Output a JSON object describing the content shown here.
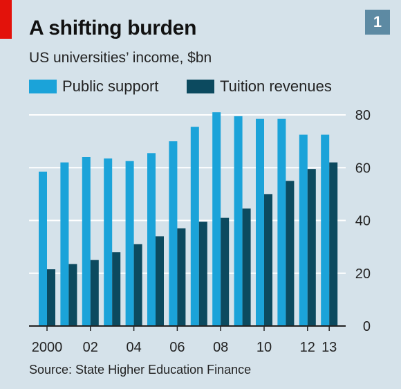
{
  "header": {
    "title": "A shifting burden",
    "subtitle": "US universities’ income, $bn",
    "badge": "1",
    "accent_color": "#e3120b",
    "badge_color": "#5d8aa3"
  },
  "source": "Source: State Higher Education Finance",
  "chart_data": {
    "type": "bar",
    "title": "A shifting burden",
    "subtitle": "US universities’ income, $bn",
    "categories": [
      "2000",
      "2001",
      "2002",
      "2003",
      "2004",
      "2005",
      "2006",
      "2007",
      "2008",
      "2009",
      "2010",
      "2011",
      "2012",
      "2013"
    ],
    "x_tick_labels": [
      {
        "index": 0,
        "label": "2000"
      },
      {
        "index": 2,
        "label": "02"
      },
      {
        "index": 4,
        "label": "04"
      },
      {
        "index": 6,
        "label": "06"
      },
      {
        "index": 8,
        "label": "08"
      },
      {
        "index": 10,
        "label": "10"
      },
      {
        "index": 12,
        "label": "12"
      },
      {
        "index": 13,
        "label": "13"
      }
    ],
    "series": [
      {
        "name": "Public support",
        "color": "#1ba3d9",
        "values": [
          58.5,
          62,
          64,
          63.5,
          62.5,
          65.5,
          70,
          75.5,
          81,
          79.5,
          78.5,
          78.5,
          72.5,
          72.5
        ]
      },
      {
        "name": "Tuition revenues",
        "color": "#0c4a5f",
        "values": [
          21.5,
          23.5,
          25,
          28,
          31,
          34,
          37,
          39.5,
          41,
          44.5,
          50,
          55,
          59.5,
          62
        ]
      }
    ],
    "ylim": [
      0,
      80
    ],
    "y_ticks": [
      0,
      20,
      40,
      60,
      80
    ],
    "y_axis_side": "right",
    "grid": true,
    "legend_position": "top-left"
  }
}
